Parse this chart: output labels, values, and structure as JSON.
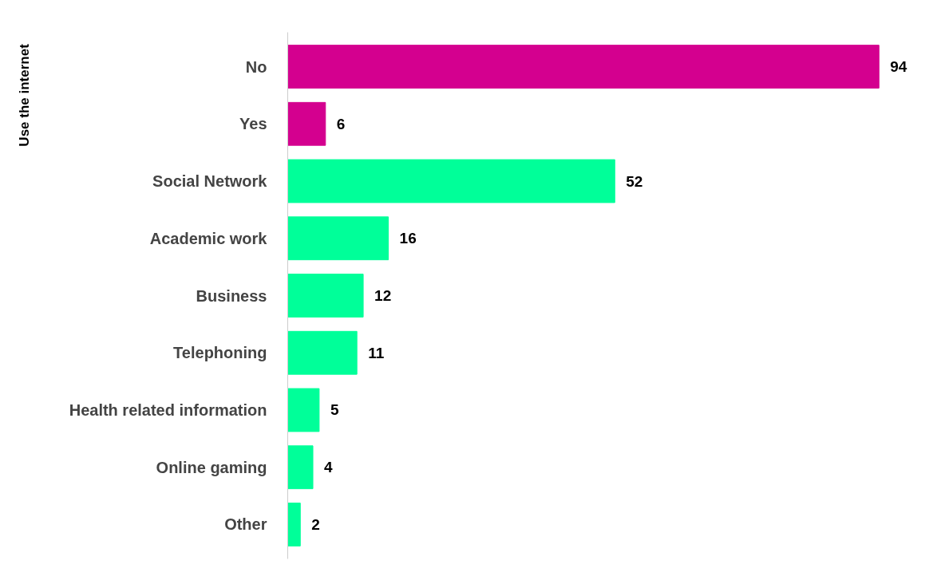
{
  "chart_data": {
    "type": "bar",
    "orientation": "horizontal",
    "data_labels": true,
    "categories": [
      "No",
      "Yes",
      "Social Network",
      "Academic work",
      "Business",
      "Telephoning",
      "Health related information",
      "Online gaming",
      "Other"
    ],
    "values": [
      94,
      6,
      52,
      16,
      12,
      11,
      5,
      4,
      2
    ],
    "colors": [
      "#d4008f",
      "#d4008f",
      "#00ff99",
      "#00ff99",
      "#00ff99",
      "#00ff99",
      "#00ff99",
      "#00ff99",
      "#00ff99"
    ],
    "annotations": [
      "Use the internet"
    ],
    "grid": false
  }
}
